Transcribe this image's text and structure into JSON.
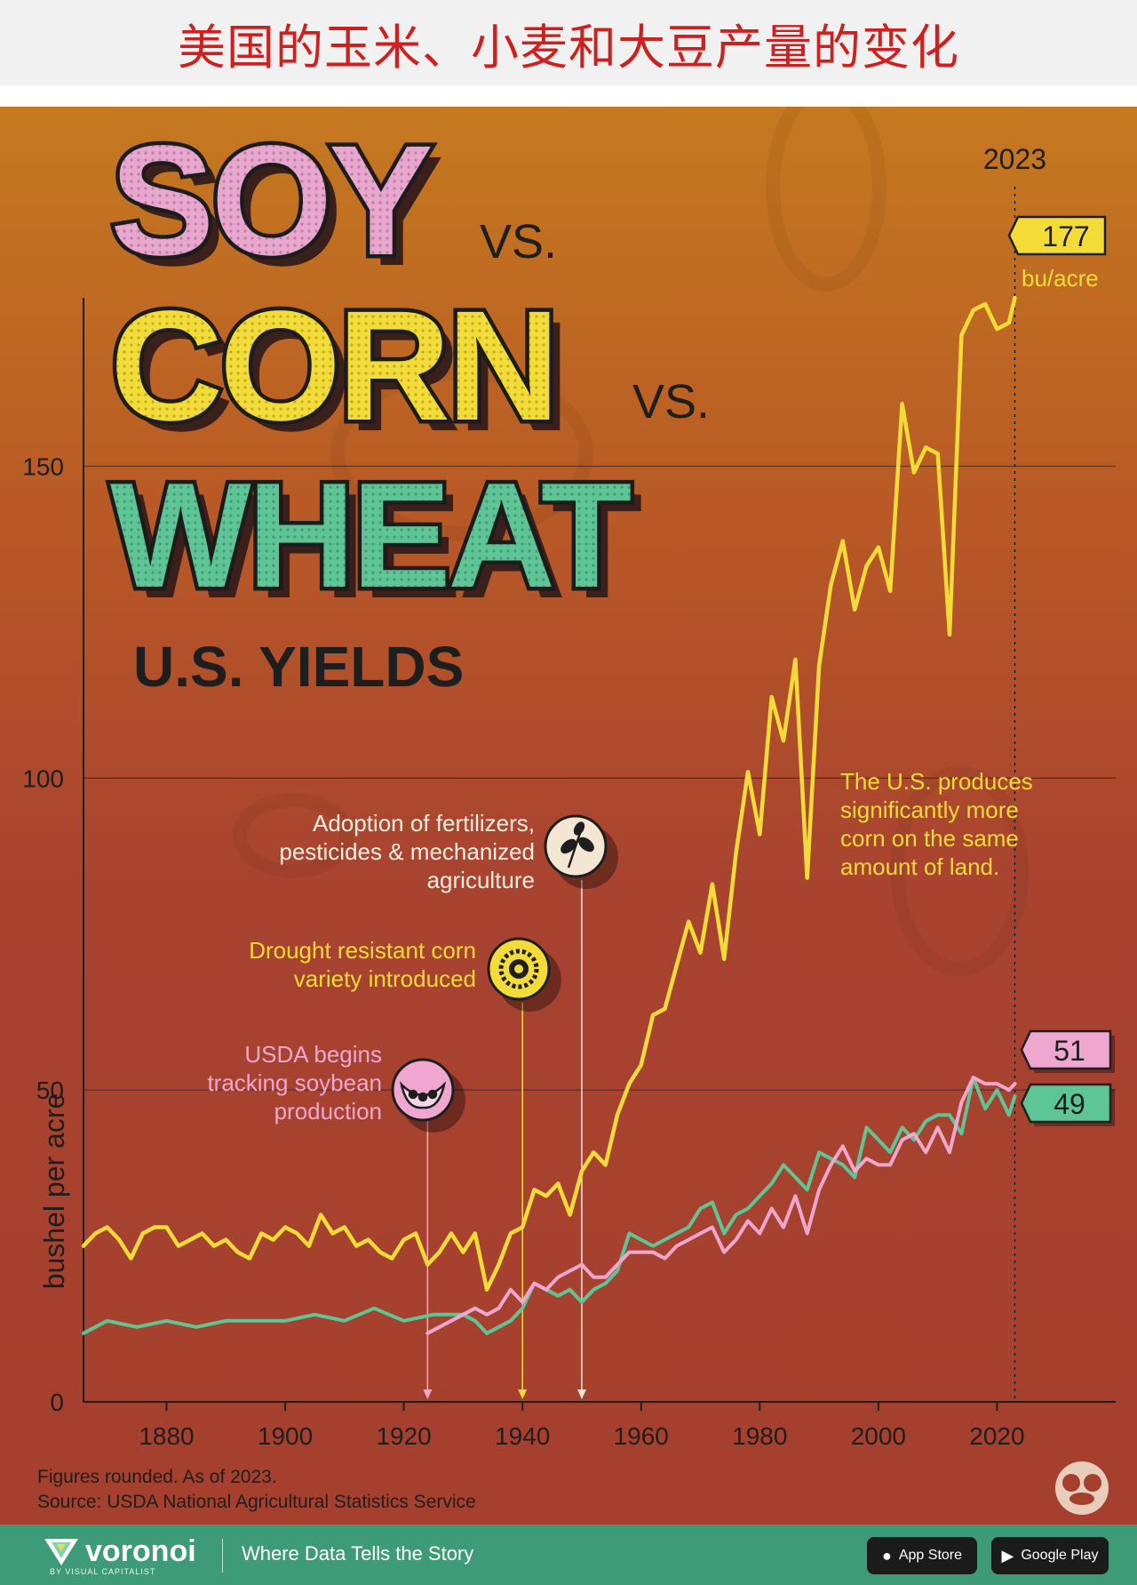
{
  "header": {
    "title": "美国的玉米、小麦和大豆产量的变化"
  },
  "poster": {
    "title_soy": "SOY",
    "title_vs1": "VS.",
    "title_corn": "CORN",
    "title_vs2": "VS.",
    "title_wheat": "WHEAT",
    "subtitle": "U.S. YIELDS",
    "ylabel": "bushel per acre",
    "year_marker": "2023",
    "end_labels": {
      "corn": "177",
      "corn_unit": "bu/acre",
      "soy": "51",
      "wheat": "49"
    },
    "annotations": {
      "corn_note": [
        "The U.S. produces",
        "significantly more",
        "corn on the same",
        "amount of land."
      ],
      "fertilizer": [
        "Adoption of fertilizers,",
        "pesticides & mechanized",
        "agriculture"
      ],
      "drought": [
        "Drought resistant corn",
        "variety introduced"
      ],
      "soybean": [
        "USDA begins",
        "tracking soybean",
        "production"
      ]
    },
    "footnote": "Figures rounded. As of 2023.",
    "source": "Source: USDA National Agricultural Statistics Service"
  },
  "colors": {
    "corn": "#f3dc38",
    "soy": "#f0a7cf",
    "wheat": "#5ec596",
    "text_dark": "#1e1e1e"
  },
  "icons": {
    "fertilizer": "leaf-sprig-icon",
    "drought": "sunflower-icon",
    "soybean": "soybean-pod-icon",
    "brand": "voronoi-logo-icon"
  },
  "footer": {
    "brand": "voronoi",
    "brand_sub": "BY VISUAL CAPITALIST",
    "tagline": "Where Data Tells the Story",
    "app_store": "App Store",
    "google_play": "Google Play"
  },
  "chart_data": {
    "type": "line",
    "ylabel": "bushel per acre",
    "xlim": [
      1866,
      2040
    ],
    "ylim": [
      0,
      177
    ],
    "xticks": [
      1880,
      1900,
      1920,
      1940,
      1960,
      1980,
      2000,
      2020
    ],
    "yticks": [
      0,
      50,
      100,
      150
    ],
    "grid": "horizontal",
    "series": [
      {
        "key": "corn",
        "x": [
          1866,
          1868,
          1870,
          1872,
          1874,
          1876,
          1878,
          1880,
          1882,
          1884,
          1886,
          1888,
          1890,
          1892,
          1894,
          1896,
          1898,
          1900,
          1902,
          1904,
          1906,
          1908,
          1910,
          1912,
          1914,
          1916,
          1918,
          1920,
          1922,
          1924,
          1926,
          1928,
          1930,
          1932,
          1934,
          1936,
          1938,
          1940,
          1942,
          1944,
          1946,
          1948,
          1950,
          1952,
          1954,
          1956,
          1958,
          1960,
          1962,
          1964,
          1966,
          1968,
          1970,
          1972,
          1974,
          1976,
          1978,
          1980,
          1982,
          1984,
          1986,
          1988,
          1990,
          1992,
          1994,
          1996,
          1998,
          2000,
          2002,
          2004,
          2006,
          2008,
          2010,
          2012,
          2014,
          2016,
          2018,
          2020,
          2022,
          2023
        ],
        "values": [
          25,
          27,
          28,
          26,
          23,
          27,
          28,
          28,
          25,
          26,
          27,
          25,
          26,
          24,
          23,
          27,
          26,
          28,
          27,
          25,
          30,
          27,
          28,
          25,
          26,
          24,
          23,
          26,
          27,
          22,
          24,
          27,
          24,
          27,
          18,
          22,
          27,
          28,
          34,
          33,
          35,
          30,
          37,
          40,
          38,
          46,
          51,
          54,
          62,
          63,
          70,
          77,
          72,
          83,
          71,
          88,
          101,
          91,
          113,
          106,
          119,
          84,
          118,
          131,
          138,
          127,
          134,
          137,
          130,
          160,
          149,
          153,
          152,
          123,
          171,
          175,
          176,
          172,
          173,
          177
        ]
      },
      {
        "key": "wheat",
        "x": [
          1866,
          1870,
          1875,
          1880,
          1885,
          1890,
          1895,
          1900,
          1905,
          1910,
          1915,
          1920,
          1925,
          1930,
          1932,
          1934,
          1936,
          1938,
          1940,
          1942,
          1944,
          1946,
          1948,
          1950,
          1952,
          1954,
          1956,
          1958,
          1960,
          1962,
          1964,
          1966,
          1968,
          1970,
          1972,
          1974,
          1976,
          1978,
          1980,
          1982,
          1984,
          1986,
          1988,
          1990,
          1992,
          1994,
          1996,
          1998,
          2000,
          2002,
          2004,
          2006,
          2008,
          2010,
          2012,
          2014,
          2016,
          2018,
          2020,
          2022,
          2023
        ],
        "values": [
          11,
          13,
          12,
          13,
          12,
          13,
          13,
          13,
          14,
          13,
          15,
          13,
          14,
          14,
          13,
          11,
          12,
          13,
          15,
          19,
          18,
          17,
          18,
          16,
          18,
          19,
          21,
          27,
          26,
          25,
          26,
          27,
          28,
          31,
          32,
          27,
          30,
          31,
          33,
          35,
          38,
          36,
          34,
          40,
          39,
          38,
          36,
          44,
          42,
          40,
          44,
          42,
          45,
          46,
          46,
          43,
          52,
          47,
          50,
          46,
          49
        ]
      },
      {
        "key": "soy",
        "x": [
          1924,
          1926,
          1928,
          1930,
          1932,
          1934,
          1936,
          1938,
          1940,
          1942,
          1944,
          1946,
          1948,
          1950,
          1952,
          1954,
          1956,
          1958,
          1960,
          1962,
          1964,
          1966,
          1968,
          1970,
          1972,
          1974,
          1976,
          1978,
          1980,
          1982,
          1984,
          1986,
          1988,
          1990,
          1992,
          1994,
          1996,
          1998,
          2000,
          2002,
          2004,
          2006,
          2008,
          2010,
          2012,
          2014,
          2016,
          2018,
          2020,
          2022,
          2023
        ],
        "values": [
          11,
          12,
          13,
          14,
          15,
          14,
          15,
          18,
          16,
          19,
          18,
          20,
          21,
          22,
          20,
          20,
          22,
          24,
          24,
          24,
          23,
          25,
          26,
          27,
          28,
          24,
          26,
          29,
          27,
          31,
          28,
          33,
          27,
          34,
          38,
          41,
          37,
          39,
          38,
          38,
          42,
          43,
          40,
          44,
          40,
          48,
          52,
          51,
          51,
          50,
          51
        ]
      }
    ],
    "annotations": [
      {
        "x": 1924,
        "text": "USDA begins tracking soybean production"
      },
      {
        "x": 1940,
        "text": "Drought resistant corn variety introduced"
      },
      {
        "x": 1950,
        "text": "Adoption of fertilizers, pesticides & mechanized agriculture"
      },
      {
        "x": 2023,
        "text": "2023"
      }
    ],
    "notes": [
      "Figures rounded. As of 2023.",
      "Source: USDA National Agricultural Statistics Service"
    ]
  }
}
